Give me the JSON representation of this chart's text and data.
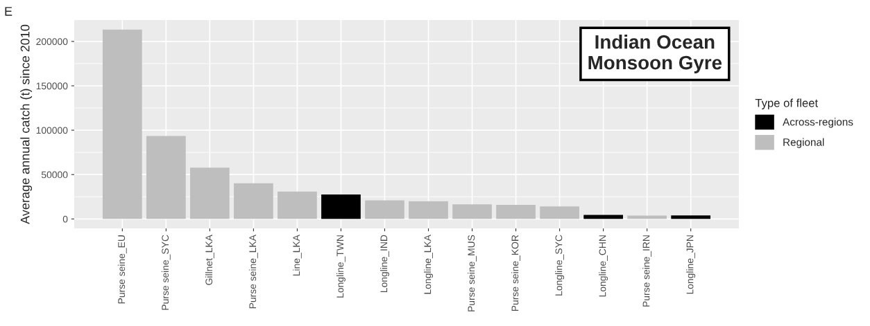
{
  "chart_data": {
    "type": "bar",
    "categories": [
      "Purse seine_EU",
      "Purse seine_SYC",
      "Gillnet_LKA",
      "Purse seine_LKA",
      "Line_LKA",
      "Longline_TWN",
      "Longline_IND",
      "Longline_LKA",
      "Purse seine_MUS",
      "Purse seine_KOR",
      "Longline_SYC",
      "Longline_CHN",
      "Purse seine_IRN",
      "Longline_JPN"
    ],
    "series": [
      {
        "name": "Across-regions",
        "color": "#000000",
        "values": [
          null,
          null,
          null,
          null,
          null,
          27600,
          null,
          null,
          null,
          null,
          null,
          4600,
          null,
          4000
        ]
      },
      {
        "name": "Regional",
        "color": "#bebebe",
        "values": [
          213400,
          93400,
          57700,
          40200,
          30900,
          null,
          21000,
          19900,
          16400,
          15900,
          14000,
          null,
          3700,
          null
        ]
      }
    ],
    "ylabel": "Average annual catch (t) since 2010",
    "legend_title": "Type of fleet",
    "legend": "right",
    "ylim": [
      -10670,
      224070
    ],
    "yticks": [
      0,
      50000,
      100000,
      150000,
      200000
    ],
    "grid": true,
    "annotations": [
      "E",
      "Indian Ocean\nMonsoon Gyre"
    ]
  }
}
